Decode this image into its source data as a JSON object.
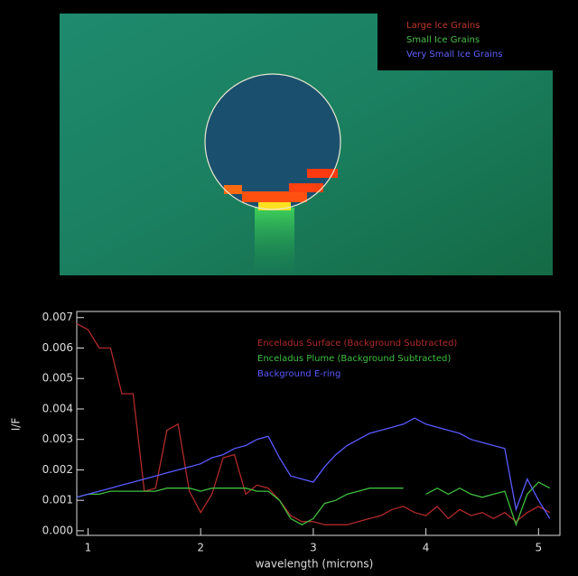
{
  "image": {
    "legend": [
      {
        "label": "Large Ice Grains",
        "color": "#c0392b"
      },
      {
        "label": "Small Ice Grains",
        "color": "#4cc04c"
      },
      {
        "label": "Very Small Ice Grains",
        "color": "#6060ff"
      }
    ]
  },
  "chart_data": {
    "type": "line",
    "x_label": "wavelength (microns)",
    "y_label": "I/F",
    "xlim": [
      0.9,
      5.19
    ],
    "ylim": [
      -0.00015,
      0.0072
    ],
    "xticks": [
      1,
      2,
      3,
      4,
      5
    ],
    "yticks": [
      {
        "value": 0,
        "label": "0.000"
      },
      0.001,
      0.002,
      0.003,
      0.004,
      0.005,
      0.006,
      0.007
    ],
    "x": [
      0.9,
      1.0,
      1.1,
      1.2,
      1.3,
      1.4,
      1.5,
      1.6,
      1.7,
      1.8,
      1.9,
      2.0,
      2.1,
      2.2,
      2.3,
      2.4,
      2.5,
      2.6,
      2.7,
      2.8,
      2.9,
      3.0,
      3.1,
      3.2,
      3.3,
      3.4,
      3.5,
      3.6,
      3.7,
      3.8,
      3.9,
      4.0,
      4.1,
      4.2,
      4.3,
      4.4,
      4.5,
      4.6,
      4.7,
      4.8,
      4.9,
      5.0,
      5.1
    ],
    "series": [
      {
        "name": "Enceladus Surface (Background Subtracted)",
        "color": "#b22a2a",
        "values": [
          0.0068,
          0.0066,
          0.006,
          0.006,
          0.0045,
          0.0045,
          0.0013,
          0.0014,
          0.0033,
          0.0035,
          0.0013,
          0.0006,
          0.0012,
          0.0024,
          0.0025,
          0.0012,
          0.0015,
          0.0014,
          0.001,
          0.0005,
          0.0003,
          0.0003,
          0.0002,
          0.0002,
          0.0002,
          0.0003,
          0.0004,
          0.0005,
          0.0007,
          0.0008,
          0.0006,
          0.0005,
          0.0008,
          0.0004,
          0.0007,
          0.0005,
          0.0006,
          0.0004,
          0.0006,
          0.0003,
          0.0006,
          0.0008,
          0.0006
        ]
      },
      {
        "name": "Enceladus Plume (Background Subtracted)",
        "color": "#3fbf3f",
        "values": [
          0.0011,
          0.0012,
          0.0012,
          0.0013,
          0.0013,
          0.0013,
          0.0013,
          0.0013,
          0.0014,
          0.0014,
          0.0014,
          0.0013,
          0.0014,
          0.0014,
          0.0014,
          0.0014,
          0.0013,
          0.0013,
          0.001,
          0.0004,
          0.0002,
          0.0004,
          0.0009,
          0.001,
          0.0012,
          0.0013,
          0.0014,
          0.0014,
          0.0014,
          0.0014,
          null,
          0.0012,
          0.0014,
          0.0012,
          0.0014,
          0.0012,
          0.0011,
          0.0012,
          0.0013,
          0.0002,
          0.0012,
          0.0016,
          0.0014
        ]
      },
      {
        "name": "Background E-ring",
        "color": "#5a5aff",
        "values": [
          0.0011,
          0.0012,
          0.0013,
          0.0014,
          0.0015,
          0.0016,
          0.0017,
          0.0018,
          0.0019,
          0.002,
          0.0021,
          0.0022,
          0.0024,
          0.0025,
          0.0027,
          0.0028,
          0.003,
          0.0031,
          0.0024,
          0.0018,
          0.0017,
          0.0016,
          0.0021,
          0.0025,
          0.0028,
          0.003,
          0.0032,
          0.0033,
          0.0034,
          0.0035,
          0.0037,
          0.0035,
          0.0034,
          0.0033,
          0.0032,
          0.003,
          0.0029,
          0.0028,
          0.0027,
          0.0007,
          0.0017,
          0.001,
          0.0004
        ]
      }
    ]
  }
}
